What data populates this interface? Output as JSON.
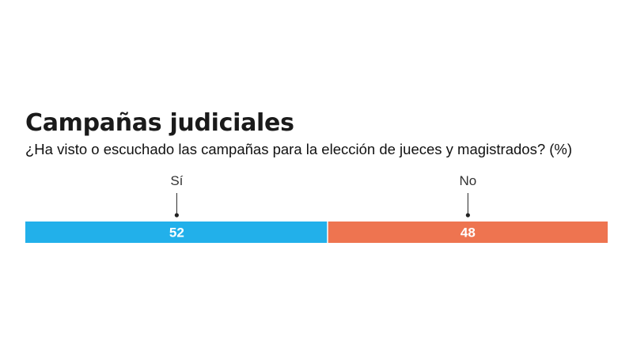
{
  "chart_data": {
    "type": "bar",
    "orientation": "horizontal-stacked",
    "title": "Campañas judiciales",
    "subtitle": "¿Ha visto o escuchado las campañas para la elección de jueces y magistrados? (%)",
    "categories": [
      "Sí",
      "No"
    ],
    "values": [
      52,
      48
    ],
    "value_labels": [
      "52",
      "48"
    ],
    "colors": [
      "#22b0ea",
      "#ee7450"
    ],
    "xlim": [
      0,
      100
    ],
    "grid": false,
    "legend": "none"
  }
}
